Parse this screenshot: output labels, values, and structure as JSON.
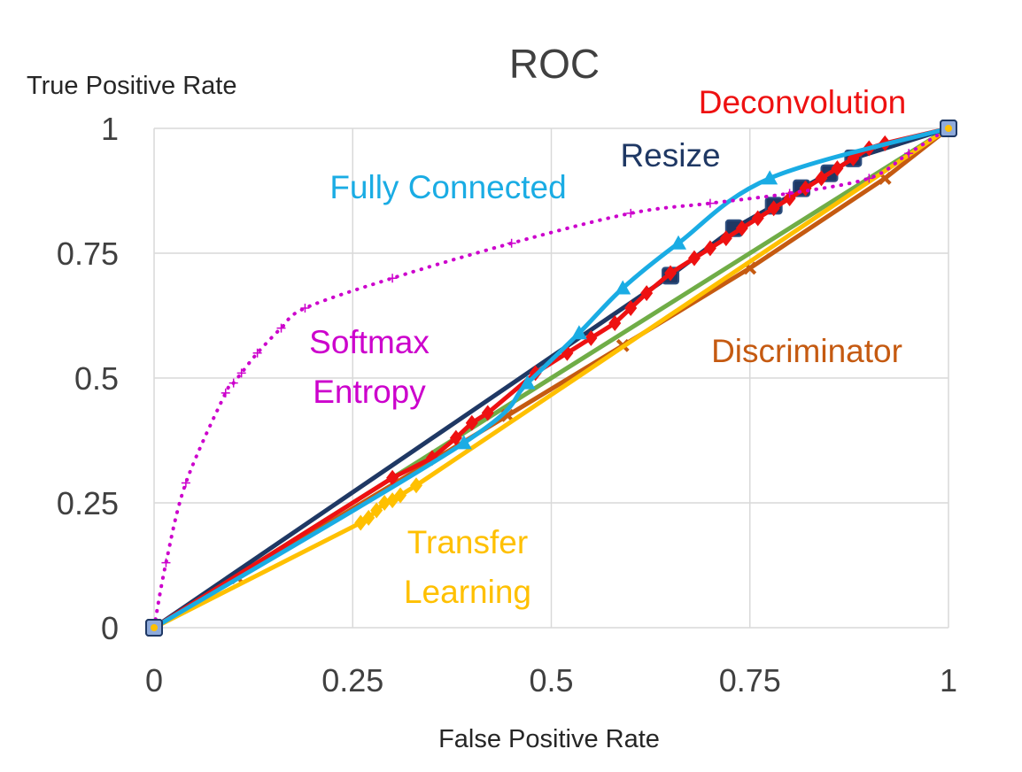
{
  "chart_data": {
    "type": "line",
    "title": "ROC",
    "xlabel": "False Positive Rate",
    "ylabel": "True Positive Rate",
    "xlim": [
      0,
      1
    ],
    "ylim": [
      0,
      1
    ],
    "x_ticks": [
      "0",
      "0.25",
      "0.5",
      "0.75",
      "1"
    ],
    "y_ticks": [
      "0",
      "0.25",
      "0.5",
      "0.75",
      "1"
    ],
    "grid": true,
    "legend": "none (series labeled directly on plot)",
    "series": [
      {
        "name": "Softmax Entropy",
        "label_lines": [
          "Softmax",
          "Entropy"
        ],
        "color": "#cc00cc",
        "style": "dotted",
        "marker": "plus",
        "x": [
          0,
          0.015,
          0.04,
          0.09,
          0.1,
          0.11,
          0.13,
          0.16,
          0.19,
          0.3,
          0.45,
          0.6,
          0.7,
          0.8,
          0.9,
          0.95,
          1
        ],
        "y": [
          0,
          0.13,
          0.29,
          0.47,
          0.49,
          0.51,
          0.55,
          0.6,
          0.64,
          0.7,
          0.77,
          0.83,
          0.85,
          0.87,
          0.9,
          0.95,
          1
        ]
      },
      {
        "name": "Fully Connected",
        "color": "#1aace4",
        "style": "solid",
        "marker": "triangle",
        "x": [
          0,
          0.39,
          0.47,
          0.535,
          0.59,
          0.66,
          0.775,
          1
        ],
        "y": [
          0,
          0.37,
          0.49,
          0.59,
          0.68,
          0.77,
          0.9,
          1
        ]
      },
      {
        "name": "Deconvolution",
        "color": "#ee1111",
        "style": "solid",
        "marker": "diamond",
        "x": [
          0,
          0.3,
          0.35,
          0.38,
          0.4,
          0.42,
          0.48,
          0.52,
          0.55,
          0.58,
          0.6,
          0.62,
          0.65,
          0.68,
          0.7,
          0.72,
          0.74,
          0.76,
          0.78,
          0.8,
          0.82,
          0.84,
          0.86,
          0.88,
          0.9,
          0.92,
          1
        ],
        "y": [
          0,
          0.3,
          0.34,
          0.38,
          0.41,
          0.43,
          0.51,
          0.55,
          0.58,
          0.61,
          0.64,
          0.67,
          0.71,
          0.74,
          0.76,
          0.78,
          0.8,
          0.82,
          0.84,
          0.86,
          0.88,
          0.9,
          0.92,
          0.94,
          0.96,
          0.97,
          1
        ]
      },
      {
        "name": "Resize",
        "color": "#1f3864",
        "style": "solid",
        "marker": "square",
        "x": [
          0,
          0.65,
          0.73,
          0.78,
          0.815,
          0.85,
          0.88,
          1
        ],
        "y": [
          0,
          0.705,
          0.8,
          0.845,
          0.88,
          0.91,
          0.94,
          1
        ]
      },
      {
        "name": "Discriminator",
        "color": "#c55a11",
        "style": "solid",
        "marker": "x",
        "x": [
          0,
          0.105,
          0.445,
          0.59,
          0.75,
          0.92,
          1
        ],
        "y": [
          0,
          0.1,
          0.425,
          0.565,
          0.72,
          0.9,
          1
        ]
      },
      {
        "name": "Transfer Learning",
        "label_lines": [
          "Transfer",
          "Learning"
        ],
        "color": "#ffc000",
        "style": "solid",
        "marker": "diamond",
        "x": [
          0,
          0.26,
          0.27,
          0.28,
          0.29,
          0.3,
          0.31,
          0.33,
          1
        ],
        "y": [
          0,
          0.21,
          0.22,
          0.235,
          0.25,
          0.255,
          0.265,
          0.285,
          1
        ]
      },
      {
        "name": "unlabeled green",
        "color": "#70ad47",
        "style": "solid",
        "marker": "none",
        "x": [
          0,
          1
        ],
        "y": [
          0,
          1
        ]
      }
    ]
  }
}
